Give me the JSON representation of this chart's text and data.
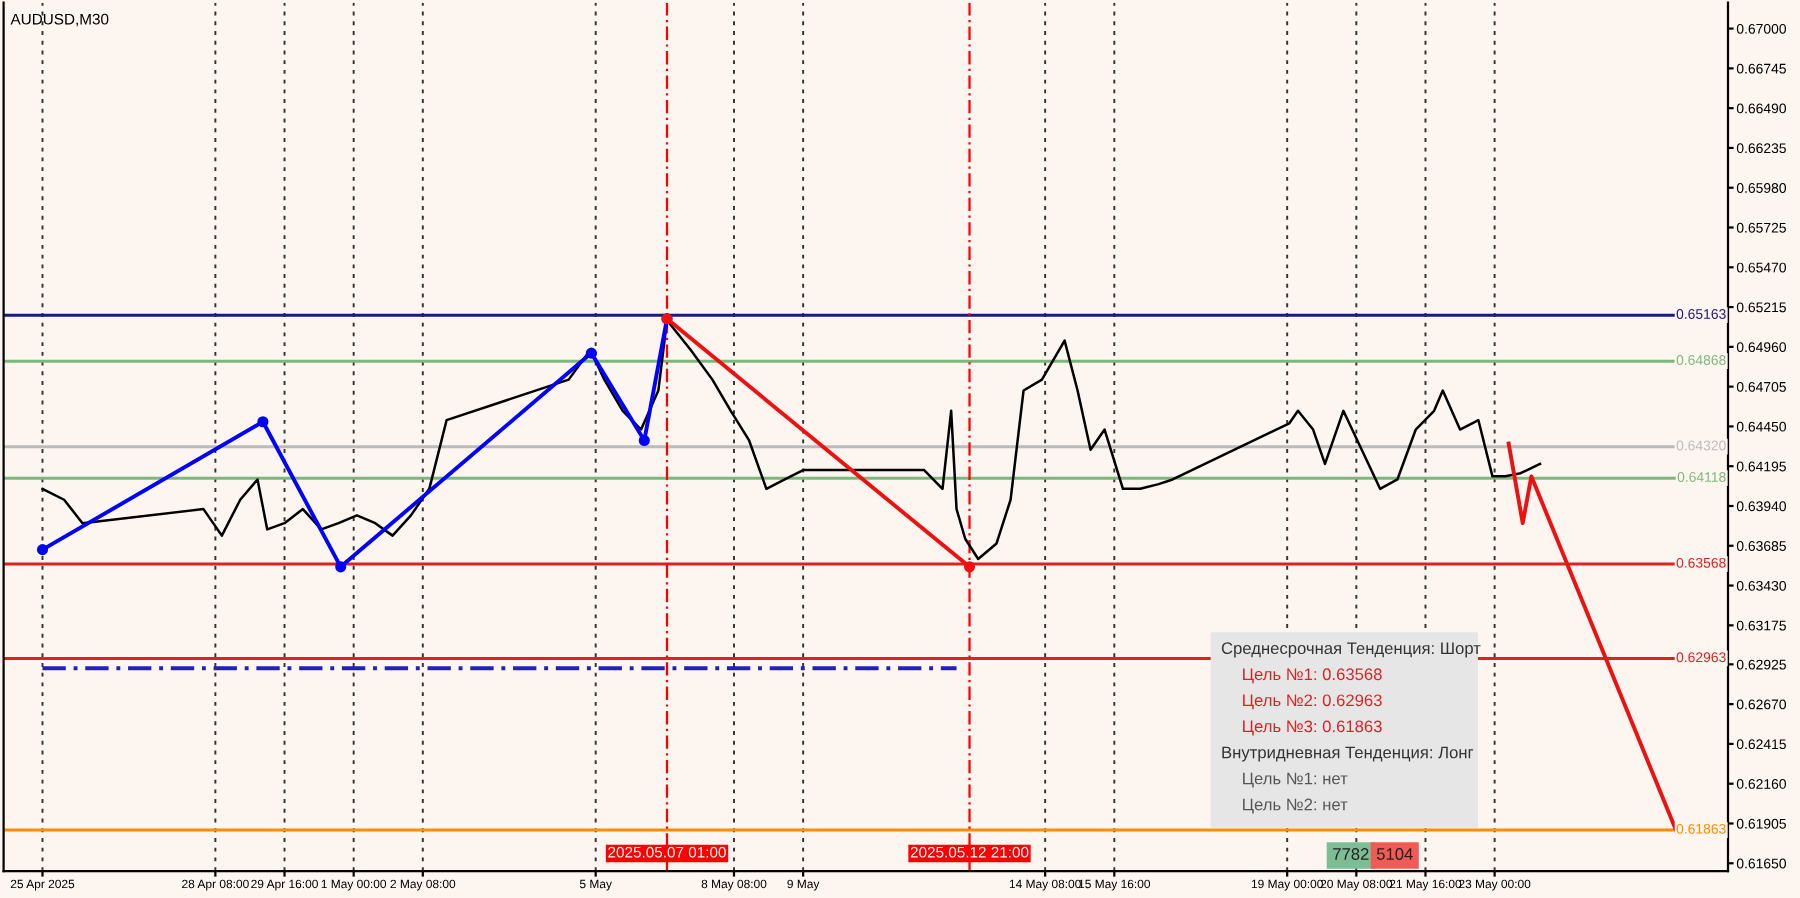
{
  "chart_data": {
    "type": "line",
    "title": "AUDUSD,M30",
    "xlim": [
      "2025-04-24T06:00",
      "2025-05-27T12:00"
    ],
    "ylim": [
      0.616,
      0.67166
    ],
    "xticks": [
      {
        "value": "2025-04-25T00:00",
        "label": "25 Apr 2025"
      },
      {
        "value": "2025-04-28T08:00",
        "label": "28 Apr 08:00"
      },
      {
        "value": "2025-04-29T16:00",
        "label": "29 Apr 16:00"
      },
      {
        "value": "2025-05-01T00:00",
        "label": "1 May 00:00"
      },
      {
        "value": "2025-05-02T08:00",
        "label": "2 May 08:00"
      },
      {
        "value": "2025-05-05T16:00",
        "label": "5 May"
      },
      {
        "value": "2025-05-08T08:00",
        "label": "8 May 08:00"
      },
      {
        "value": "2025-05-09T16:00",
        "label": "9 May"
      },
      {
        "value": "2025-05-14T08:00",
        "label": "14 May 08:00"
      },
      {
        "value": "2025-05-15T16:00",
        "label": "15 May 16:00"
      },
      {
        "value": "2025-05-19T00:00",
        "label": "19 May 00:00"
      },
      {
        "value": "2025-05-20T08:00",
        "label": "20 May 08:00"
      },
      {
        "value": "2025-05-21T16:00",
        "label": "21 May 16:00"
      },
      {
        "value": "2025-05-23T00:00",
        "label": "23 May 00:00"
      }
    ],
    "yticks": [
      {
        "value": 0.67,
        "label": "0.67000"
      },
      {
        "value": 0.66745,
        "label": "0.66745"
      },
      {
        "value": 0.6649,
        "label": "0.66490"
      },
      {
        "value": 0.66235,
        "label": "0.66235"
      },
      {
        "value": 0.6598,
        "label": "0.65980"
      },
      {
        "value": 0.65725,
        "label": "0.65725"
      },
      {
        "value": 0.6547,
        "label": "0.65470"
      },
      {
        "value": 0.65215,
        "label": "0.65215"
      },
      {
        "value": 0.6496,
        "label": "0.64960"
      },
      {
        "value": 0.64705,
        "label": "0.64705"
      },
      {
        "value": 0.6445,
        "label": "0.64450"
      },
      {
        "value": 0.64195,
        "label": "0.64195"
      },
      {
        "value": 0.6394,
        "label": "0.63940"
      },
      {
        "value": 0.63685,
        "label": "0.63685"
      },
      {
        "value": 0.6343,
        "label": "0.63430"
      },
      {
        "value": 0.63175,
        "label": "0.63175"
      },
      {
        "value": 0.62925,
        "label": "0.62925"
      },
      {
        "value": 0.6267,
        "label": "0.62670"
      },
      {
        "value": 0.62415,
        "label": "0.62415"
      },
      {
        "value": 0.6216,
        "label": "0.62160"
      },
      {
        "value": 0.61905,
        "label": "0.61905"
      },
      {
        "value": 0.6165,
        "label": "0.61650"
      }
    ],
    "grid": "x",
    "series": [
      {
        "color": "#000000",
        "marker": "none",
        "line_style": "solid",
        "x": [
          "2025-04-25T00:00",
          "2025-04-25T10:00",
          "2025-04-25T18:30",
          "2025-04-28T02:30",
          "2025-04-28T11:00",
          "2025-04-28T19:30",
          "2025-04-29T03:30",
          "2025-04-29T08:00",
          "2025-04-29T16:00",
          "2025-04-30T00:30",
          "2025-04-30T09:00",
          "2025-04-30T17:00",
          "2025-05-01T01:30",
          "2025-05-01T10:00",
          "2025-05-01T18:00",
          "2025-05-02T02:30",
          "2025-05-02T11:00",
          "2025-05-02T19:00",
          "2025-05-05T03:30",
          "2025-05-05T13:30",
          "2025-05-05T20:00",
          "2025-05-06T04:30",
          "2025-05-06T13:00",
          "2025-05-06T21:00",
          "2025-05-07T01:00",
          "2025-05-07T12:00",
          "2025-05-07T22:00",
          "2025-05-08T06:30",
          "2025-05-08T15:00",
          "2025-05-08T23:00",
          "2025-05-09T07:30",
          "2025-05-09T16:00",
          "2025-05-12T00:00",
          "2025-05-12T08:30",
          "2025-05-12T12:30",
          "2025-05-12T15:00",
          "2025-05-12T19:00",
          "2025-05-13T01:00",
          "2025-05-13T09:30",
          "2025-05-13T16:00",
          "2025-05-13T22:00",
          "2025-05-14T06:30",
          "2025-05-14T17:00",
          "2025-05-14T23:00",
          "2025-05-15T05:00",
          "2025-05-15T11:30",
          "2025-05-15T20:00",
          "2025-05-16T04:00",
          "2025-05-16T12:30",
          "2025-05-16T19:00",
          "2025-05-19T01:00",
          "2025-05-19T05:00",
          "2025-05-19T12:00",
          "2025-05-19T17:30",
          "2025-05-20T02:00",
          "2025-05-20T10:30",
          "2025-05-20T19:00",
          "2025-05-21T03:00",
          "2025-05-21T11:30",
          "2025-05-21T20:00",
          "2025-05-22T00:00",
          "2025-05-22T08:00",
          "2025-05-22T16:30",
          "2025-05-22T23:00",
          "2025-05-23T05:00",
          "2025-05-23T12:00",
          "2025-05-23T21:00"
        ],
        "values": [
          0.6405,
          0.6398,
          0.6383,
          0.6392,
          0.6375,
          0.6398,
          0.6411,
          0.6379,
          0.6383,
          0.6392,
          0.6379,
          0.6383,
          0.6388,
          0.6383,
          0.6375,
          0.6388,
          0.6405,
          0.6449,
          0.6475,
          0.6494,
          0.6475,
          0.6455,
          0.6443,
          0.6468,
          0.6513,
          0.6494,
          0.6475,
          0.6455,
          0.6436,
          0.6405,
          0.6411,
          0.6417,
          0.6417,
          0.6405,
          0.6455,
          0.6392,
          0.6373,
          0.636,
          0.637,
          0.6398,
          0.6468,
          0.6475,
          0.65,
          0.6468,
          0.643,
          0.6443,
          0.6405,
          0.6405,
          0.6408,
          0.6411,
          0.6447,
          0.6455,
          0.6443,
          0.6421,
          0.6455,
          0.643,
          0.6405,
          0.6411,
          0.6443,
          0.6455,
          0.6468,
          0.6443,
          0.6449,
          0.6413,
          0.6413,
          0.6415,
          0.6421
        ]
      },
      {
        "color": "#0000ff",
        "marker": "circle",
        "line_style": "solid",
        "x": [
          "2025-04-25T00:00",
          "2025-04-29T06:00",
          "2025-04-30T18:00",
          "2025-05-05T14:00",
          "2025-05-06T14:30",
          "2025-05-07T01:00"
        ],
        "values": [
          0.6366,
          0.6448,
          0.6355,
          0.6492,
          0.6436,
          0.6514
        ]
      },
      {
        "color": "#ee1111",
        "marker": "circle",
        "line_style": "solid",
        "x": [
          "2025-05-07T01:00",
          "2025-05-12T21:00"
        ],
        "values": [
          0.6514,
          0.6355
        ]
      },
      {
        "color": "#ee1111",
        "marker": "none",
        "line_style": "solid",
        "x": [
          "2025-05-23T06:30",
          "2025-05-23T13:00",
          "2025-05-23T17:00",
          "2025-05-26T12:00"
        ],
        "values": [
          0.6434,
          0.6383,
          0.6413,
          0.6186
        ]
      },
      {
        "color": "#2222bb",
        "marker": "none",
        "line_style": "dashed",
        "x": [
          "2025-04-25T00:00",
          "2025-05-12T15:00"
        ],
        "values": [
          0.629,
          0.629
        ]
      }
    ],
    "ref_lines": [
      {
        "axis": "y",
        "value": 0.65163,
        "label": "0.65163",
        "color": "#1a1a80",
        "line_style": "solid"
      },
      {
        "axis": "y",
        "value": 0.64868,
        "label": "0.64868",
        "color": "#7cb87c",
        "line_style": "solid"
      },
      {
        "axis": "y",
        "value": 0.6432,
        "label": "0.64320",
        "color": "#bbbbbb",
        "line_style": "solid"
      },
      {
        "axis": "y",
        "value": 0.64118,
        "label": "0.64118",
        "color": "#7cb87c",
        "line_style": "solid"
      },
      {
        "axis": "y",
        "value": 0.63568,
        "label": "0.63568",
        "color": "#dd2222",
        "line_style": "solid"
      },
      {
        "axis": "y",
        "value": 0.62963,
        "label": "0.62963",
        "color": "#dd2222",
        "line_style": "solid"
      },
      {
        "axis": "y",
        "value": 0.61863,
        "label": "0.61863",
        "color": "#ff8c00",
        "line_style": "solid"
      },
      {
        "axis": "x",
        "value": "2025-05-07T01:00",
        "label": "2025.05.07 01:00",
        "color": "#ff0000",
        "line_style": "dashed"
      },
      {
        "axis": "x",
        "value": "2025-05-12T21:00",
        "label": "2025.05.12 21:00",
        "color": "#ff0000",
        "line_style": "dashed"
      }
    ],
    "annotations": [
      "Среднесрочная Тенденция: Шорт",
      "Цель №1: 0.63568",
      "Цель №2: 0.62963",
      "Цель №3: 0.61863",
      "Внутридневная Тенденция: Лонг",
      "Цель №1: нет",
      "Цель №2: нет",
      "7782",
      "5104"
    ]
  }
}
